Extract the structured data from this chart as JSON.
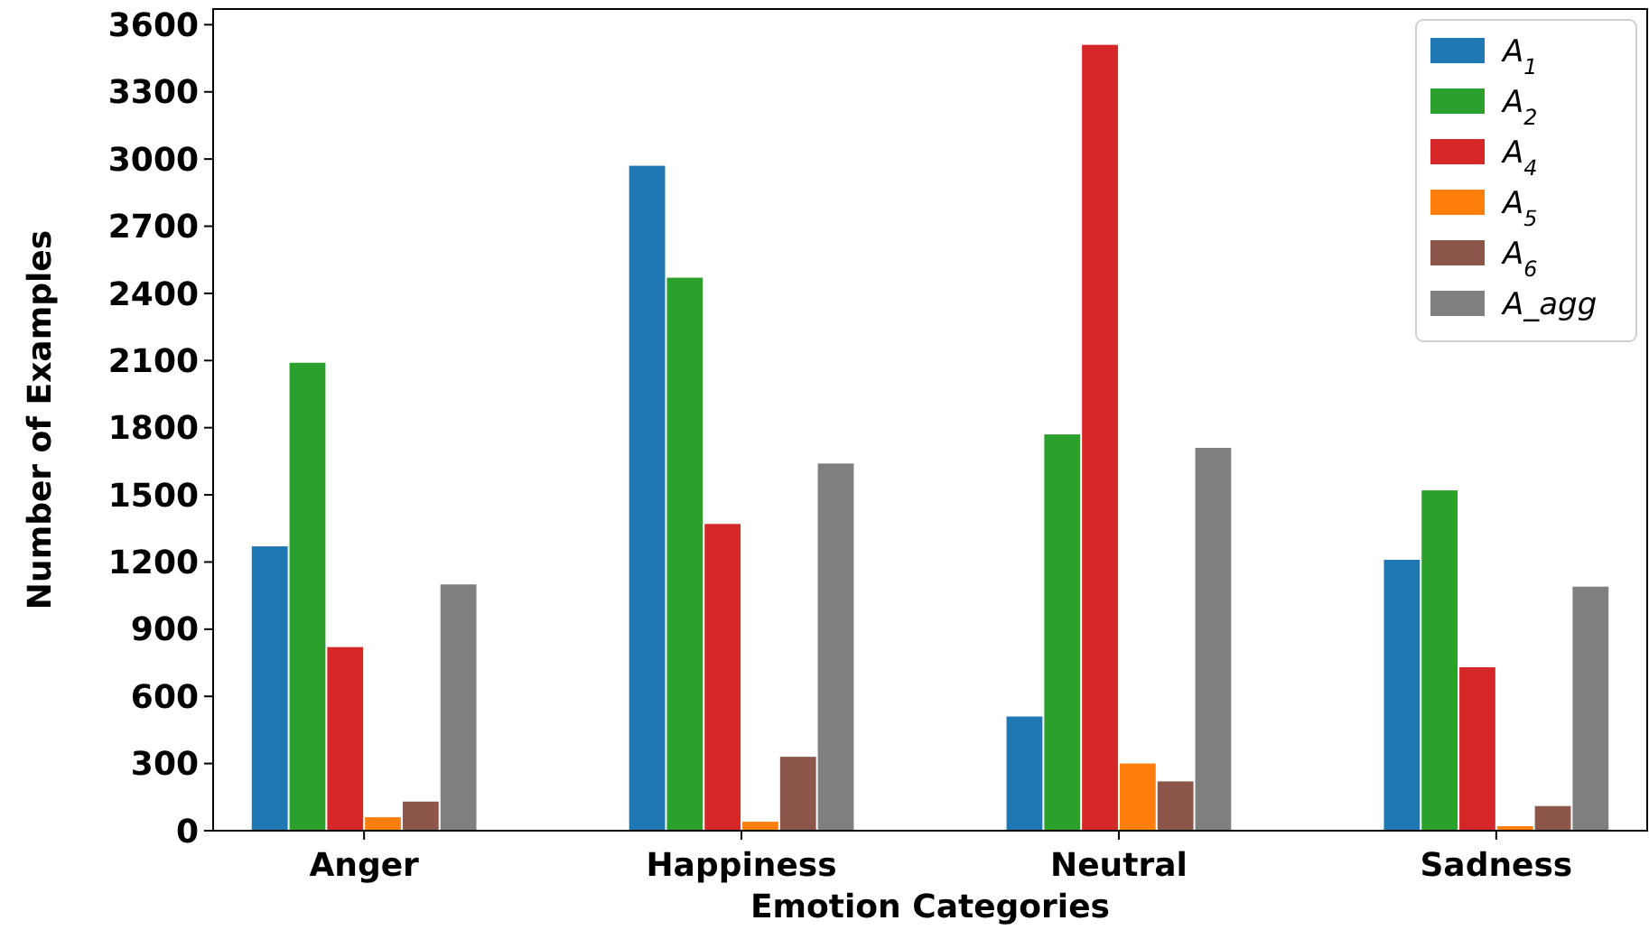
{
  "chart_data": {
    "type": "bar",
    "xlabel": "Emotion Categories",
    "ylabel": "Number of Examples",
    "categories": [
      "Anger",
      "Happiness",
      "Neutral",
      "Sadness"
    ],
    "series": [
      {
        "name": "A$_{1}$",
        "color": "#1f77b4",
        "values": [
          1270,
          2970,
          510,
          1210
        ]
      },
      {
        "name": "A$_{2}$",
        "color": "#2ca02c",
        "values": [
          2090,
          2470,
          1770,
          1520
        ]
      },
      {
        "name": "A$_{4}$",
        "color": "#d62728",
        "values": [
          820,
          1370,
          3510,
          730
        ]
      },
      {
        "name": "A$_{5}$",
        "color": "#ff7f0e",
        "values": [
          60,
          40,
          300,
          20
        ]
      },
      {
        "name": "A$_{6}$",
        "color": "#8c564b",
        "values": [
          130,
          330,
          220,
          110
        ]
      },
      {
        "name": "A_agg",
        "color": "#7f7f7f",
        "values": [
          1100,
          1640,
          1710,
          1090
        ]
      }
    ],
    "ylim": [
      0,
      3670
    ],
    "yticks": [
      0,
      300,
      600,
      900,
      1200,
      1500,
      1800,
      2100,
      2400,
      2700,
      3000,
      3300,
      3600
    ],
    "grid": false,
    "legend": "top right"
  }
}
